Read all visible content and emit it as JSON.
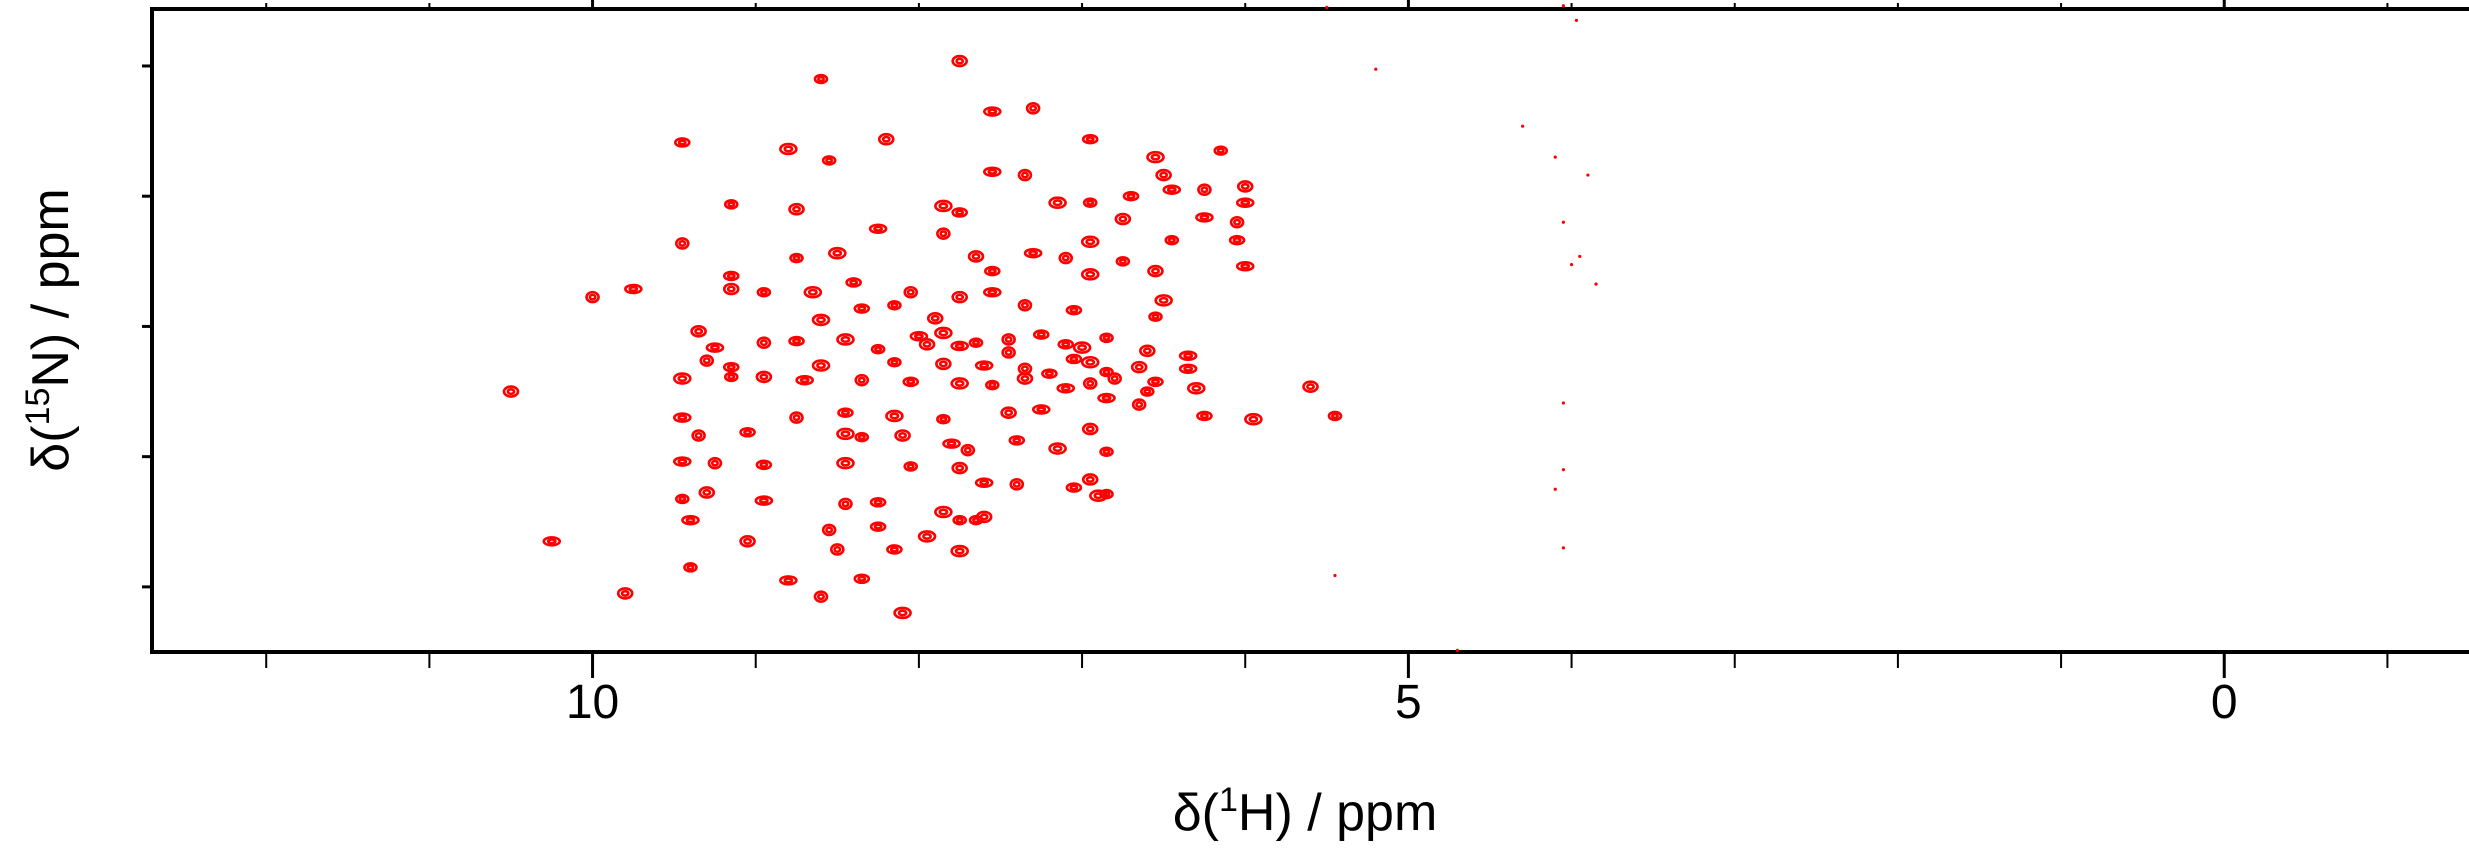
{
  "chart_data": {
    "type": "scatter",
    "title": "",
    "xlabel": {
      "prefix": "δ(",
      "sup": "1",
      "suffix": "H) / ppm"
    },
    "ylabel": {
      "prefix": "δ(",
      "sup": "15",
      "suffix": "N) / ppm"
    },
    "xlim": [
      12.7,
      -1.5
    ],
    "ylim": [
      136,
      96.5
    ],
    "x_reversed": true,
    "y_reversed": true,
    "x_ticks": [
      10,
      5,
      0
    ],
    "x_tick_labels": [
      "10",
      "5",
      "0"
    ],
    "y_tick_labels": [],
    "grid": false,
    "legend": "none",
    "peak_color": "#ff0000",
    "series": [
      {
        "values": [
          [
            8.6,
            100.8
          ],
          [
            7.75,
            99.7
          ],
          [
            7.55,
            102.8
          ],
          [
            7.3,
            102.6
          ],
          [
            9.45,
            104.7
          ],
          [
            8.8,
            105.1
          ],
          [
            8.55,
            105.8
          ],
          [
            8.2,
            104.5
          ],
          [
            7.55,
            106.5
          ],
          [
            7.35,
            106.7
          ],
          [
            6.95,
            104.5
          ],
          [
            6.55,
            105.6
          ],
          [
            6.15,
            105.2
          ],
          [
            6.5,
            106.7
          ],
          [
            6.45,
            107.6
          ],
          [
            6.25,
            107.6
          ],
          [
            6.7,
            108.0
          ],
          [
            7.85,
            108.6
          ],
          [
            9.15,
            108.5
          ],
          [
            8.75,
            108.8
          ],
          [
            8.25,
            110.0
          ],
          [
            7.85,
            110.3
          ],
          [
            7.75,
            109.0
          ],
          [
            7.15,
            108.4
          ],
          [
            6.95,
            108.4
          ],
          [
            6.75,
            109.4
          ],
          [
            6.25,
            109.3
          ],
          [
            6.05,
            109.6
          ],
          [
            6.05,
            110.7
          ],
          [
            6.95,
            110.8
          ],
          [
            6.45,
            110.7
          ],
          [
            6.0,
            107.4
          ],
          [
            6.0,
            108.4
          ],
          [
            9.45,
            110.9
          ],
          [
            9.15,
            112.9
          ],
          [
            8.5,
            111.5
          ],
          [
            8.75,
            111.8
          ],
          [
            7.65,
            111.7
          ],
          [
            7.3,
            111.5
          ],
          [
            7.1,
            111.8
          ],
          [
            7.55,
            112.6
          ],
          [
            6.95,
            112.8
          ],
          [
            6.75,
            112.0
          ],
          [
            6.55,
            112.6
          ],
          [
            6.0,
            112.3
          ],
          [
            8.05,
            113.9
          ],
          [
            8.4,
            113.3
          ],
          [
            8.65,
            113.9
          ],
          [
            8.95,
            113.9
          ],
          [
            9.15,
            113.7
          ],
          [
            9.75,
            113.7
          ],
          [
            10.0,
            114.2
          ],
          [
            8.35,
            114.9
          ],
          [
            8.6,
            115.6
          ],
          [
            8.15,
            114.7
          ],
          [
            7.75,
            114.2
          ],
          [
            7.55,
            113.9
          ],
          [
            7.35,
            114.7
          ],
          [
            7.05,
            115.0
          ],
          [
            6.5,
            114.4
          ],
          [
            6.55,
            115.4
          ],
          [
            7.9,
            115.5
          ],
          [
            8.0,
            116.6
          ],
          [
            7.45,
            116.8
          ],
          [
            7.25,
            116.5
          ],
          [
            7.85,
            116.4
          ],
          [
            7.65,
            117.0
          ],
          [
            9.35,
            116.3
          ],
          [
            9.25,
            117.3
          ],
          [
            8.95,
            117.0
          ],
          [
            8.75,
            116.9
          ],
          [
            8.45,
            116.8
          ],
          [
            8.25,
            117.4
          ],
          [
            7.95,
            117.1
          ],
          [
            7.75,
            117.2
          ],
          [
            7.45,
            117.6
          ],
          [
            7.1,
            117.1
          ],
          [
            7.0,
            117.3
          ],
          [
            6.85,
            116.7
          ],
          [
            6.6,
            117.5
          ],
          [
            6.35,
            117.8
          ],
          [
            9.3,
            118.1
          ],
          [
            9.15,
            118.5
          ],
          [
            8.6,
            118.4
          ],
          [
            8.15,
            118.2
          ],
          [
            7.85,
            118.3
          ],
          [
            7.6,
            118.4
          ],
          [
            7.35,
            118.6
          ],
          [
            7.05,
            118.0
          ],
          [
            6.95,
            118.2
          ],
          [
            6.85,
            118.8
          ],
          [
            6.65,
            118.5
          ],
          [
            6.35,
            118.6
          ],
          [
            6.8,
            119.2
          ],
          [
            7.2,
            118.9
          ],
          [
            9.45,
            119.2
          ],
          [
            9.15,
            119.1
          ],
          [
            8.95,
            119.1
          ],
          [
            8.7,
            119.3
          ],
          [
            8.35,
            119.3
          ],
          [
            8.05,
            119.4
          ],
          [
            7.75,
            119.5
          ],
          [
            7.55,
            119.6
          ],
          [
            7.35,
            119.2
          ],
          [
            7.1,
            119.8
          ],
          [
            6.95,
            119.5
          ],
          [
            6.55,
            119.4
          ],
          [
            6.3,
            119.8
          ],
          [
            6.6,
            120.0
          ],
          [
            10.5,
            120.0
          ],
          [
            6.85,
            120.4
          ],
          [
            6.65,
            120.8
          ],
          [
            6.25,
            121.5
          ],
          [
            5.95,
            121.7
          ],
          [
            5.45,
            121.5
          ],
          [
            5.6,
            119.7
          ],
          [
            9.45,
            121.6
          ],
          [
            8.75,
            121.6
          ],
          [
            8.45,
            121.3
          ],
          [
            8.15,
            121.5
          ],
          [
            7.85,
            121.7
          ],
          [
            7.45,
            121.3
          ],
          [
            7.25,
            121.1
          ],
          [
            9.35,
            122.7
          ],
          [
            9.05,
            122.5
          ],
          [
            8.45,
            122.6
          ],
          [
            8.35,
            122.8
          ],
          [
            8.1,
            122.7
          ],
          [
            7.8,
            123.2
          ],
          [
            7.7,
            123.6
          ],
          [
            7.4,
            123.0
          ],
          [
            7.15,
            123.5
          ],
          [
            6.85,
            123.7
          ],
          [
            6.95,
            122.3
          ],
          [
            9.45,
            124.3
          ],
          [
            9.25,
            124.4
          ],
          [
            8.95,
            124.5
          ],
          [
            8.45,
            124.4
          ],
          [
            8.05,
            124.6
          ],
          [
            7.75,
            124.7
          ],
          [
            7.6,
            125.6
          ],
          [
            7.4,
            125.7
          ],
          [
            7.05,
            125.9
          ],
          [
            6.9,
            126.4
          ],
          [
            9.45,
            126.6
          ],
          [
            9.3,
            126.2
          ],
          [
            8.95,
            126.7
          ],
          [
            8.45,
            126.9
          ],
          [
            8.25,
            126.8
          ],
          [
            7.85,
            127.4
          ],
          [
            7.75,
            127.9
          ],
          [
            7.6,
            127.7
          ],
          [
            9.4,
            127.9
          ],
          [
            8.55,
            128.5
          ],
          [
            8.25,
            128.3
          ],
          [
            7.95,
            128.9
          ],
          [
            7.65,
            127.9
          ],
          [
            9.05,
            129.2
          ],
          [
            10.25,
            129.2
          ],
          [
            8.5,
            129.7
          ],
          [
            8.15,
            129.7
          ],
          [
            7.75,
            129.8
          ],
          [
            9.4,
            130.8
          ],
          [
            9.8,
            132.4
          ],
          [
            8.8,
            131.6
          ],
          [
            8.6,
            132.6
          ],
          [
            8.35,
            131.5
          ],
          [
            8.1,
            133.6
          ],
          [
            6.85,
            126.3
          ],
          [
            6.95,
            125.4
          ]
        ]
      }
    ],
    "faint_points": [
      [
        5.5,
        96.4
      ],
      [
        4.05,
        96.3
      ],
      [
        3.95,
        95.7
      ],
      [
        3.97,
        97.2
      ],
      [
        5.2,
        100.2
      ],
      [
        4.3,
        103.7
      ],
      [
        4.1,
        105.6
      ],
      [
        3.9,
        106.7
      ],
      [
        4.05,
        109.6
      ],
      [
        3.95,
        111.7
      ],
      [
        4.0,
        112.2
      ],
      [
        3.85,
        113.4
      ],
      [
        4.05,
        120.7
      ],
      [
        4.05,
        124.8
      ],
      [
        4.1,
        126.0
      ],
      [
        4.05,
        129.6
      ],
      [
        5.45,
        131.3
      ],
      [
        4.7,
        135.9
      ]
    ]
  }
}
